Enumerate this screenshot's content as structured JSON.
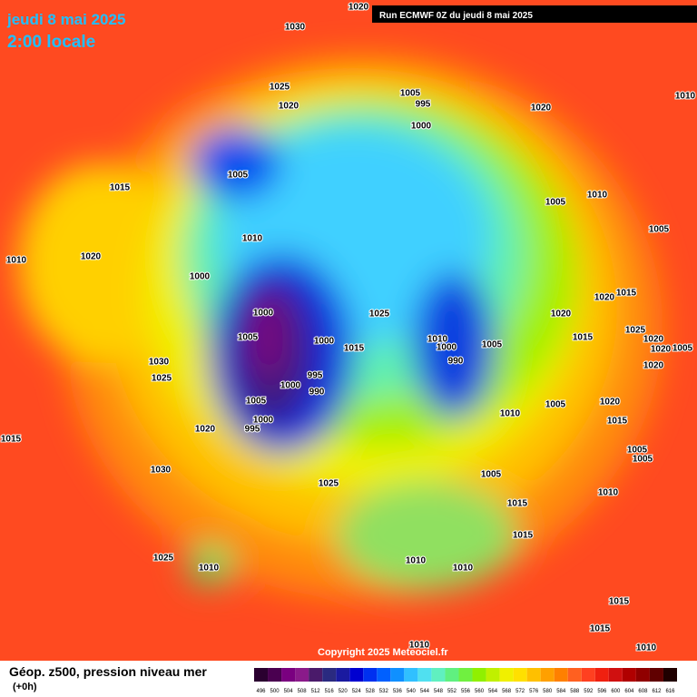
{
  "header": {
    "date": "jeudi 8 mai 2025",
    "time": "2:00 locale",
    "run": "Run ECMWF 0Z du jeudi 8 mai 2025"
  },
  "copyright": "Copyright 2025 Meteociel.fr",
  "legend": {
    "title": "Géop. z500, pression niveau mer",
    "lead": "(+0h)",
    "labels": [
      496,
      500,
      504,
      508,
      512,
      516,
      520,
      524,
      528,
      532,
      536,
      540,
      544,
      548,
      552,
      556,
      560,
      564,
      568,
      572,
      576,
      580,
      584,
      588,
      592,
      596,
      600,
      604,
      608,
      612,
      616
    ],
    "colors": [
      "#2a0030",
      "#4a0050",
      "#7a0080",
      "#8a1a8a",
      "#4a1a6a",
      "#2a2a80",
      "#1a1aa0",
      "#0000d0",
      "#0030f0",
      "#0060ff",
      "#1090ff",
      "#30c0ff",
      "#50e0f0",
      "#60f0c0",
      "#60f080",
      "#70f040",
      "#90f000",
      "#c0f000",
      "#f0f000",
      "#ffe000",
      "#ffc000",
      "#ffa000",
      "#ff8000",
      "#ff6020",
      "#ff4020",
      "#f02010",
      "#d01010",
      "#b00000",
      "#900000",
      "#600000",
      "#200000"
    ]
  },
  "isobars": [
    "1020",
    "1030",
    "1025",
    "1020",
    "1005",
    "995",
    "1000",
    "1020",
    "1010",
    "1005",
    "1015",
    "1010",
    "1005",
    "1005",
    "1010",
    "1020",
    "1010",
    "1000",
    "1000",
    "1025",
    "1020",
    "1015",
    "1020",
    "1005",
    "1000",
    "1015",
    "1010",
    "1000",
    "990",
    "1005",
    "1015",
    "1025",
    "1020",
    "1020",
    "1005",
    "1030",
    "1025",
    "995",
    "1000",
    "990",
    "1005",
    "1020",
    "1005",
    "1020",
    "1010",
    "1015",
    "1000",
    "995",
    "1020",
    "1015",
    "1005",
    "1005",
    "1030",
    "1005",
    "1025",
    "1010",
    "1015",
    "1015",
    "1025",
    "1010",
    "1010",
    "1010",
    "1015",
    "1015",
    "1010",
    "1010"
  ]
}
